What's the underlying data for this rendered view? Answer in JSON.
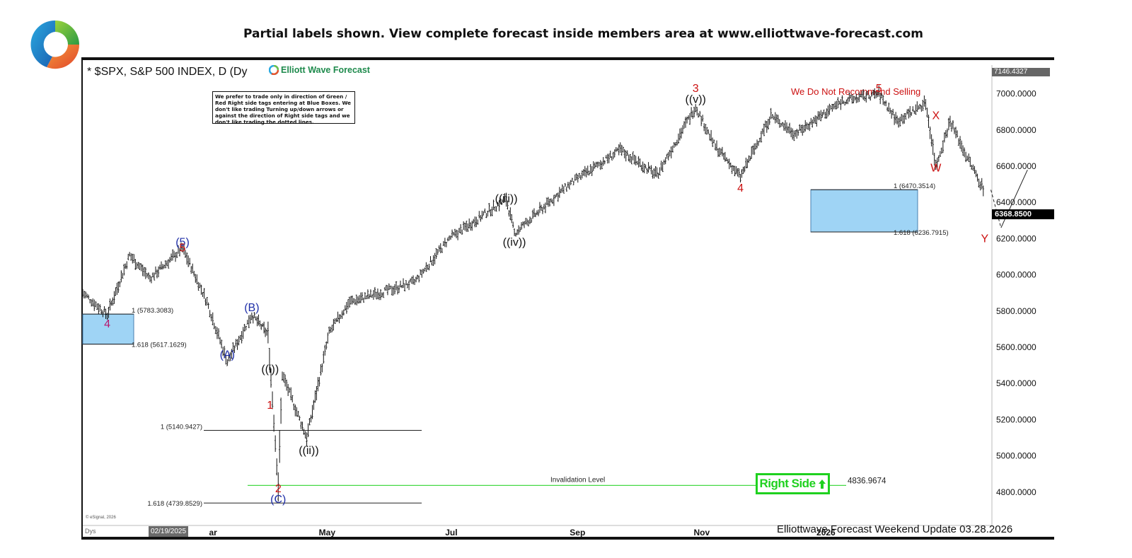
{
  "banner": {
    "text": "Partial labels shown. View complete forecast inside members area at www.elliottwave-forecast.com",
    "icon": "lock-icon"
  },
  "chart_data": {
    "type": "candlestick",
    "title": "* $SPX, S&P 500 INDEX, D (Dy",
    "brand": "Elliott Wave Forecast",
    "disclaimer": "We prefer to trade only in direction of Green / Red Right side tags entering at Blue Boxes. We don't like trading Turning up/down arrows or against the direction of Right side tags and we don't like trading the dotted lines.",
    "y_axis": {
      "ticks": [
        "7000.0000",
        "6800.0000",
        "6600.0000",
        "6400.0000",
        "6200.0000",
        "6000.0000",
        "5800.0000",
        "5600.0000",
        "5400.0000",
        "5200.0000",
        "5000.0000",
        "4800.0000"
      ],
      "top_price_label": "7146.4327",
      "current_price_label": "6368.8500"
    },
    "x_axis": {
      "ticks": [
        "ar",
        "May",
        "Jul",
        "Sep",
        "Nov",
        "2026"
      ],
      "start_date_label": "02/19/2025",
      "corner_label": "Dys"
    },
    "wave_labels": [
      {
        "text": "(5)",
        "date": "2025-02-19",
        "price": 6160,
        "color": "#1f2fa8"
      },
      {
        "text": "5",
        "date": "2025-02-19",
        "price": 6130,
        "color": "#cc1111"
      },
      {
        "text": "4",
        "date": "2025-01-13",
        "price": 5710,
        "color": "#b8176d"
      },
      {
        "text": "(B)",
        "date": "2025-03-25",
        "price": 5800,
        "color": "#1f2fa8"
      },
      {
        "text": "(A)",
        "date": "2025-03-13",
        "price": 5540,
        "color": "#1f2fa8"
      },
      {
        "text": "((i))",
        "date": "2025-04-03",
        "price": 5460,
        "color": "#111111"
      },
      {
        "text": "1",
        "date": "2025-04-03",
        "price": 5260,
        "color": "#cc1111"
      },
      {
        "text": "((ii))",
        "date": "2025-04-22",
        "price": 5010,
        "color": "#111111"
      },
      {
        "text": "2",
        "date": "2025-04-07",
        "price": 4800,
        "color": "#cc1111"
      },
      {
        "text": "(C)",
        "date": "2025-04-07",
        "price": 4740,
        "color": "#1f2fa8"
      },
      {
        "text": "((iii))",
        "date": "2025-07-28",
        "price": 6400,
        "color": "#111111"
      },
      {
        "text": "((iv))",
        "date": "2025-08-01",
        "price": 6160,
        "color": "#111111"
      },
      {
        "text": "((v))",
        "date": "2025-10-29",
        "price": 6950,
        "color": "#111111"
      },
      {
        "text": "3",
        "date": "2025-10-29",
        "price": 7010,
        "color": "#cc1111"
      },
      {
        "text": "4",
        "date": "2025-11-20",
        "price": 6460,
        "color": "#cc1111"
      },
      {
        "text": "5",
        "date": "2026-01-27",
        "price": 7010,
        "color": "#cc1111"
      },
      {
        "text": "X",
        "date": "2026-02-24",
        "price": 6860,
        "color": "#cc1111"
      },
      {
        "text": "W",
        "date": "2026-02-24",
        "price": 6570,
        "color": "#cc1111"
      },
      {
        "text": "Y",
        "date": "2026-03-20",
        "price": 6180,
        "color": "#cc1111"
      }
    ],
    "fib_levels": [
      {
        "label": "1 (5783.3083)",
        "price": 5783.3083
      },
      {
        "label": "1.618 (5617.1629)",
        "price": 5617.1629
      },
      {
        "label": "1 (5140.9427)",
        "price": 5140.9427
      },
      {
        "label": "1.618 (4739.8529)",
        "price": 4739.8529
      },
      {
        "label": "1 (6470.3514)",
        "price": 6470.3514
      },
      {
        "label": "1.618 (6236.7915)",
        "price": 6236.7915
      }
    ],
    "blue_boxes": [
      {
        "from_price": 5617.1629,
        "to_price": 5783.3083
      },
      {
        "from_price": 6236.7915,
        "to_price": 6470.3514
      }
    ],
    "invalidation": {
      "label": "Invalidation Level",
      "price": 4836.9674,
      "price_label": "4836.9674"
    },
    "note": "We Do Not Recommend Selling",
    "right_side_tag": "Right Side",
    "update_text": "Elliottwave Forecast Weekend  Update 03.28.2026",
    "esignal": "© eSignal, 2026",
    "price_path": [
      [
        "2025-01-01",
        5900
      ],
      [
        "2025-01-13",
        5780
      ],
      [
        "2025-01-24",
        6110
      ],
      [
        "2025-02-03",
        5980
      ],
      [
        "2025-02-19",
        6147
      ],
      [
        "2025-03-03",
        5850
      ],
      [
        "2025-03-13",
        5520
      ],
      [
        "2025-03-25",
        5780
      ],
      [
        "2025-04-02",
        5670
      ],
      [
        "2025-04-07",
        4835
      ],
      [
        "2025-04-09",
        5450
      ],
      [
        "2025-04-21",
        5100
      ],
      [
        "2025-05-02",
        5680
      ],
      [
        "2025-05-12",
        5850
      ],
      [
        "2025-05-21",
        5880
      ],
      [
        "2025-06-13",
        5960
      ],
      [
        "2025-06-30",
        6200
      ],
      [
        "2025-07-28",
        6420
      ],
      [
        "2025-08-01",
        6230
      ],
      [
        "2025-08-28",
        6500
      ],
      [
        "2025-09-22",
        6690
      ],
      [
        "2025-10-10",
        6550
      ],
      [
        "2025-10-29",
        6930
      ],
      [
        "2025-11-07",
        6720
      ],
      [
        "2025-11-20",
        6540
      ],
      [
        "2025-12-05",
        6880
      ],
      [
        "2025-12-17",
        6780
      ],
      [
        "2026-01-09",
        6960
      ],
      [
        "2026-01-27",
        7000
      ],
      [
        "2026-02-05",
        6850
      ],
      [
        "2026-02-19",
        6950
      ],
      [
        "2026-02-24",
        6600
      ],
      [
        "2026-03-03",
        6850
      ],
      [
        "2026-03-10",
        6680
      ],
      [
        "2026-03-20",
        6460
      ]
    ],
    "projection": [
      [
        "2026-03-23",
        6470
      ],
      [
        "2026-03-28",
        6260
      ],
      [
        "2026-04-10",
        6580
      ]
    ]
  },
  "colors": {
    "blue_box": "#9fd4f5",
    "blue_box_border": "#4a7fb0",
    "invalidation_line": "#46d946",
    "right_side": "#1fd11f"
  }
}
